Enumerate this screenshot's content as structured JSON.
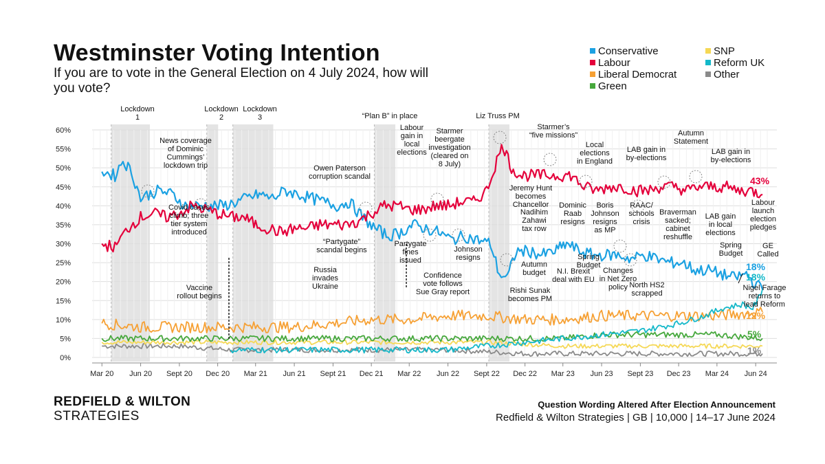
{
  "header": {
    "title": "Westminster Voting Intention",
    "subtitle": "If you are to vote in the General Election on 4 July 2024, how will you vote?"
  },
  "legend": [
    {
      "label": "Conservative",
      "color": "#1ba1e2"
    },
    {
      "label": "Labour",
      "color": "#e4003b"
    },
    {
      "label": "Liberal Democrat",
      "color": "#f6a033"
    },
    {
      "label": "Green",
      "color": "#46a83c"
    },
    {
      "label": "SNP",
      "color": "#f5d855"
    },
    {
      "label": "Reform UK",
      "color": "#14b8c9"
    },
    {
      "label": "Other",
      "color": "#8a8a8a"
    }
  ],
  "footer": {
    "brand_line1": "REDFIELD & WILTON",
    "brand_line2": "STRATEGIES",
    "note": "Question Wording Altered After Election Announcement",
    "source": "Redfield & Wilton Strategies | GB | 10,000 | 14–17 June 2024"
  },
  "chart_data": {
    "type": "line",
    "title": "Westminster Voting Intention",
    "xlabel": "",
    "ylabel": "",
    "ylim": [
      0,
      60
    ],
    "y_ticks": [
      "0%",
      "5%",
      "10%",
      "15%",
      "20%",
      "25%",
      "30%",
      "35%",
      "40%",
      "45%",
      "50%",
      "55%",
      "60%"
    ],
    "x_ticks": [
      {
        "label": "Mar 20",
        "date": "2020-03-01"
      },
      {
        "label": "Jun 20",
        "date": "2020-06-01"
      },
      {
        "label": "Sept 20",
        "date": "2020-09-01"
      },
      {
        "label": "Dec 20",
        "date": "2020-12-01"
      },
      {
        "label": "Mar 21",
        "date": "2021-03-01"
      },
      {
        "label": "Jun 21",
        "date": "2021-06-01"
      },
      {
        "label": "Sept 21",
        "date": "2021-09-01"
      },
      {
        "label": "Dec 21",
        "date": "2021-12-01"
      },
      {
        "label": "Mar 22",
        "date": "2022-03-01"
      },
      {
        "label": "Jun 22",
        "date": "2022-06-01"
      },
      {
        "label": "Sept 22",
        "date": "2022-09-01"
      },
      {
        "label": "Dec 22",
        "date": "2022-12-01"
      },
      {
        "label": "Mar 23",
        "date": "2023-03-01"
      },
      {
        "label": "Jun 23",
        "date": "2023-06-01"
      },
      {
        "label": "Sept 23",
        "date": "2023-09-01"
      },
      {
        "label": "Dec 23",
        "date": "2023-12-01"
      },
      {
        "label": "Mar 24",
        "date": "2024-03-01"
      },
      {
        "label": "Jun 24",
        "date": "2024-06-01"
      }
    ],
    "grid": true,
    "shaded_periods": [
      {
        "label": "Lockdown 1",
        "start": "2020-03-23",
        "end": "2020-06-23"
      },
      {
        "label": "Lockdown 2",
        "start": "2020-11-05",
        "end": "2020-12-02"
      },
      {
        "label": "Lockdown 3",
        "start": "2021-01-06",
        "end": "2021-04-12"
      },
      {
        "label": "“Plan B” in place",
        "start": "2021-12-08",
        "end": "2022-01-27"
      },
      {
        "label": "Liz Truss PM",
        "start": "2022-09-06",
        "end": "2022-10-25"
      }
    ],
    "series": [
      {
        "name": "Conservative",
        "color": "#1ba1e2",
        "end_label": "18%",
        "points": [
          [
            "2020-03-01",
            49
          ],
          [
            "2020-04-01",
            48
          ],
          [
            "2020-04-20",
            52
          ],
          [
            "2020-05-10",
            49
          ],
          [
            "2020-06-01",
            42
          ],
          [
            "2020-06-20",
            43
          ],
          [
            "2020-07-15",
            44
          ],
          [
            "2020-08-15",
            43
          ],
          [
            "2020-09-15",
            40
          ],
          [
            "2020-10-15",
            40
          ],
          [
            "2020-11-15",
            40
          ],
          [
            "2020-12-15",
            40
          ],
          [
            "2021-01-15",
            41
          ],
          [
            "2021-02-10",
            42
          ],
          [
            "2021-03-10",
            43
          ],
          [
            "2021-04-10",
            42
          ],
          [
            "2021-05-10",
            44
          ],
          [
            "2021-06-10",
            43
          ],
          [
            "2021-07-10",
            42
          ],
          [
            "2021-08-10",
            41
          ],
          [
            "2021-09-10",
            40
          ],
          [
            "2021-10-10",
            41
          ],
          [
            "2021-11-10",
            37
          ],
          [
            "2021-12-10",
            34
          ],
          [
            "2022-01-10",
            32
          ],
          [
            "2022-02-10",
            33
          ],
          [
            "2022-03-10",
            35
          ],
          [
            "2022-04-10",
            34
          ],
          [
            "2022-05-10",
            33
          ],
          [
            "2022-06-10",
            31
          ],
          [
            "2022-07-10",
            32
          ],
          [
            "2022-08-10",
            31
          ],
          [
            "2022-09-10",
            30
          ],
          [
            "2022-10-01",
            22
          ],
          [
            "2022-10-20",
            21
          ],
          [
            "2022-11-10",
            28
          ],
          [
            "2022-12-10",
            28
          ],
          [
            "2023-01-10",
            27
          ],
          [
            "2023-02-10",
            28
          ],
          [
            "2023-03-10",
            30
          ],
          [
            "2023-04-10",
            28
          ],
          [
            "2023-05-10",
            27
          ],
          [
            "2023-06-10",
            27
          ],
          [
            "2023-07-10",
            27
          ],
          [
            "2023-08-10",
            26
          ],
          [
            "2023-09-10",
            27
          ],
          [
            "2023-10-10",
            26
          ],
          [
            "2023-11-10",
            25
          ],
          [
            "2023-12-10",
            25
          ],
          [
            "2024-01-10",
            23
          ],
          [
            "2024-02-10",
            23
          ],
          [
            "2024-03-10",
            22
          ],
          [
            "2024-04-10",
            21
          ],
          [
            "2024-05-10",
            22
          ],
          [
            "2024-05-25",
            20
          ],
          [
            "2024-06-17",
            18
          ]
        ]
      },
      {
        "name": "Labour",
        "color": "#e4003b",
        "end_label": "43%",
        "points": [
          [
            "2020-03-01",
            30
          ],
          [
            "2020-04-01",
            29
          ],
          [
            "2020-05-01",
            34
          ],
          [
            "2020-06-01",
            37
          ],
          [
            "2020-07-01",
            38
          ],
          [
            "2020-08-01",
            37
          ],
          [
            "2020-09-01",
            38
          ],
          [
            "2020-10-01",
            40
          ],
          [
            "2020-11-01",
            39
          ],
          [
            "2020-12-01",
            38
          ],
          [
            "2021-01-01",
            37
          ],
          [
            "2021-02-01",
            37
          ],
          [
            "2021-03-01",
            35
          ],
          [
            "2021-04-01",
            34
          ],
          [
            "2021-05-01",
            33
          ],
          [
            "2021-06-01",
            34
          ],
          [
            "2021-07-01",
            34
          ],
          [
            "2021-08-01",
            35
          ],
          [
            "2021-09-01",
            35
          ],
          [
            "2021-10-01",
            35
          ],
          [
            "2021-11-01",
            36
          ],
          [
            "2021-12-01",
            38
          ],
          [
            "2022-01-01",
            40
          ],
          [
            "2022-02-01",
            40
          ],
          [
            "2022-03-01",
            39
          ],
          [
            "2022-04-01",
            39
          ],
          [
            "2022-05-01",
            40
          ],
          [
            "2022-06-01",
            40
          ],
          [
            "2022-07-01",
            41
          ],
          [
            "2022-08-01",
            41
          ],
          [
            "2022-09-01",
            44
          ],
          [
            "2022-09-25",
            52
          ],
          [
            "2022-10-10",
            56
          ],
          [
            "2022-10-30",
            50
          ],
          [
            "2022-11-20",
            48
          ],
          [
            "2022-12-20",
            48
          ],
          [
            "2023-01-20",
            48
          ],
          [
            "2023-02-20",
            48
          ],
          [
            "2023-03-20",
            48
          ],
          [
            "2023-04-20",
            45
          ],
          [
            "2023-05-20",
            44
          ],
          [
            "2023-06-20",
            45
          ],
          [
            "2023-07-20",
            45
          ],
          [
            "2023-08-20",
            44
          ],
          [
            "2023-09-20",
            44
          ],
          [
            "2023-10-20",
            45
          ],
          [
            "2023-11-20",
            45
          ],
          [
            "2023-12-20",
            44
          ],
          [
            "2024-01-20",
            45
          ],
          [
            "2024-02-20",
            45
          ],
          [
            "2024-03-20",
            45
          ],
          [
            "2024-04-20",
            44
          ],
          [
            "2024-05-20",
            44
          ],
          [
            "2024-06-17",
            43
          ]
        ]
      },
      {
        "name": "Liberal Democrat",
        "color": "#f6a033",
        "end_label": "12%",
        "points": [
          [
            "2020-03-01",
            9
          ],
          [
            "2020-06-01",
            8
          ],
          [
            "2020-09-01",
            8
          ],
          [
            "2020-12-01",
            8
          ],
          [
            "2021-03-01",
            8
          ],
          [
            "2021-06-01",
            8
          ],
          [
            "2021-09-01",
            9
          ],
          [
            "2021-12-01",
            10
          ],
          [
            "2022-03-01",
            10
          ],
          [
            "2022-06-01",
            11
          ],
          [
            "2022-09-01",
            11
          ],
          [
            "2022-12-01",
            10
          ],
          [
            "2023-03-01",
            10
          ],
          [
            "2023-06-01",
            11
          ],
          [
            "2023-09-01",
            11
          ],
          [
            "2023-12-01",
            11
          ],
          [
            "2024-03-01",
            11
          ],
          [
            "2024-06-17",
            12
          ]
        ]
      },
      {
        "name": "Green",
        "color": "#46a83c",
        "end_label": "5%",
        "points": [
          [
            "2020-03-01",
            5
          ],
          [
            "2020-06-01",
            5
          ],
          [
            "2020-09-01",
            5
          ],
          [
            "2020-12-01",
            5
          ],
          [
            "2021-03-01",
            5
          ],
          [
            "2021-06-01",
            5
          ],
          [
            "2021-09-01",
            5
          ],
          [
            "2021-12-01",
            5
          ],
          [
            "2022-03-01",
            5
          ],
          [
            "2022-06-01",
            5
          ],
          [
            "2022-09-01",
            5
          ],
          [
            "2022-12-01",
            5
          ],
          [
            "2023-03-01",
            5
          ],
          [
            "2023-06-01",
            6
          ],
          [
            "2023-09-01",
            6
          ],
          [
            "2023-12-01",
            6
          ],
          [
            "2024-03-01",
            6
          ],
          [
            "2024-06-17",
            5
          ]
        ]
      },
      {
        "name": "SNP",
        "color": "#f5d855",
        "end_label": "",
        "points": [
          [
            "2020-03-01",
            4
          ],
          [
            "2020-09-01",
            4
          ],
          [
            "2021-03-01",
            4
          ],
          [
            "2021-09-01",
            4
          ],
          [
            "2022-03-01",
            4
          ],
          [
            "2022-09-01",
            4
          ],
          [
            "2023-03-01",
            3
          ],
          [
            "2023-09-01",
            3
          ],
          [
            "2024-03-01",
            3
          ],
          [
            "2024-06-17",
            3
          ]
        ]
      },
      {
        "name": "Reform UK",
        "color": "#14b8c9",
        "end_label": "18%",
        "points": [
          [
            "2021-01-01",
            2
          ],
          [
            "2021-06-01",
            2
          ],
          [
            "2021-12-01",
            2
          ],
          [
            "2022-06-01",
            2
          ],
          [
            "2022-12-01",
            4
          ],
          [
            "2023-03-01",
            5
          ],
          [
            "2023-06-01",
            6
          ],
          [
            "2023-09-01",
            7
          ],
          [
            "2023-12-01",
            9
          ],
          [
            "2024-02-01",
            11
          ],
          [
            "2024-03-15",
            13
          ],
          [
            "2024-05-01",
            14
          ],
          [
            "2024-05-25",
            13
          ],
          [
            "2024-06-10",
            16
          ],
          [
            "2024-06-17",
            18
          ]
        ]
      },
      {
        "name": "Other",
        "color": "#8a8a8a",
        "end_label": "1%",
        "points": [
          [
            "2020-03-01",
            3
          ],
          [
            "2020-09-01",
            3
          ],
          [
            "2021-01-01",
            2
          ],
          [
            "2021-06-01",
            2
          ],
          [
            "2021-12-01",
            2
          ],
          [
            "2022-06-01",
            2
          ],
          [
            "2022-12-01",
            1
          ],
          [
            "2023-06-01",
            1
          ],
          [
            "2023-12-01",
            1
          ],
          [
            "2024-06-17",
            1
          ]
        ]
      }
    ],
    "annotations": [
      {
        "text": "Lockdown\n1"
      },
      {
        "text": "Lockdown\n2"
      },
      {
        "text": "Lockdown\n3"
      },
      {
        "text": "“Plan B” in place"
      },
      {
        "text": "Liz Truss PM"
      },
      {
        "text": "News coverage\nof Dominic\nCummings’\nlockdown trip"
      },
      {
        "text": "Covid cases\nclimb; three\ntier system\nintroduced"
      },
      {
        "text": "Vaccine\nrollout begins"
      },
      {
        "text": "Owen Paterson\ncorruption scandal"
      },
      {
        "text": "“Partygate”\nscandal begins"
      },
      {
        "text": "Russia\ninvades\nUkraine"
      },
      {
        "text": "Labour\ngain in\nlocal\nelections"
      },
      {
        "text": "Starmer\nbeergate\ninvestigation\n(cleared on\n8 July)"
      },
      {
        "text": "Partygate\nfines\nissued"
      },
      {
        "text": "Confidence\nvote follows\nSue Gray report"
      },
      {
        "text": "Johnson\nresigns"
      },
      {
        "text": "Starmer’s\n“five missions”"
      },
      {
        "text": "Jeremy Hunt\nbecomes\nChancellor"
      },
      {
        "text": "Nadihim\nZahawi\ntax row"
      },
      {
        "text": "Autumn\nbudget"
      },
      {
        "text": "Rishi Sunak\nbecomes PM"
      },
      {
        "text": "Local\nelections\nin England"
      },
      {
        "text": "Dominic\nRaab\nresigns"
      },
      {
        "text": "N.I. Brexit\ndeal with EU"
      },
      {
        "text": "Spring\nBudget"
      },
      {
        "text": "Boris\nJohnson\nresigns\nas MP"
      },
      {
        "text": "Changes\nin Net Zero\npolicy"
      },
      {
        "text": "LAB gain in\nby-elections"
      },
      {
        "text": "RAAC/\nschools\ncrisis"
      },
      {
        "text": "North HS2\nscrapped"
      },
      {
        "text": "Autumn\nStatement"
      },
      {
        "text": "Braverman\nsacked;\ncabinet\nreshuffle"
      },
      {
        "text": "LAB gain in\nby-elections"
      },
      {
        "text": "LAB gain\nin local\nelections"
      },
      {
        "text": "Spring\nBudget"
      },
      {
        "text": "GE\nCalled"
      },
      {
        "text": "Labour\nlaunch\nelection\npledges"
      },
      {
        "text": "Nigel Farage\nreturns to\nlead Reform"
      }
    ]
  }
}
